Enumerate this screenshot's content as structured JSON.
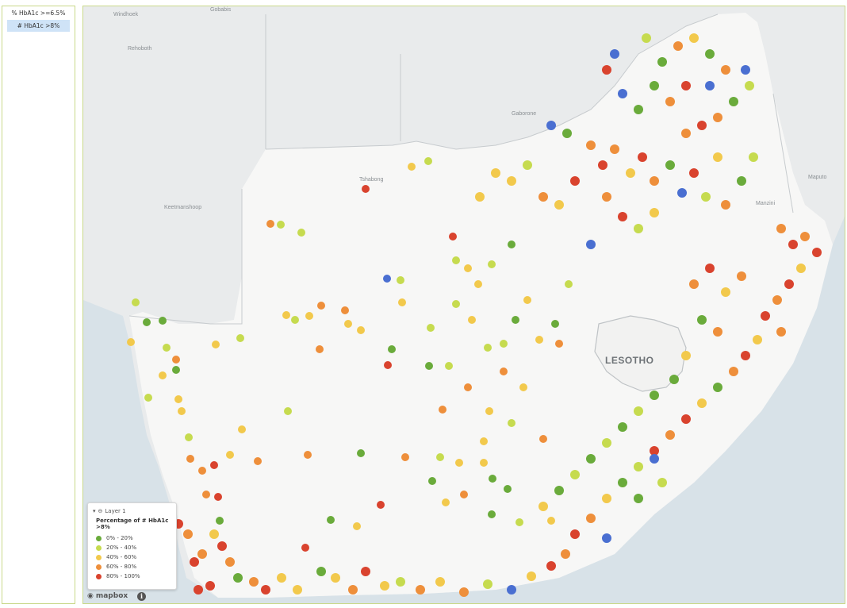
{
  "sidebar": {
    "metrics": [
      {
        "label": "% HbA1c >=6.5%",
        "active": false
      },
      {
        "label": "# HbA1c >8%",
        "active": true
      }
    ]
  },
  "map": {
    "place_labels": [
      "Windhoek",
      "Gobabis",
      "Rehoboth",
      "Gaborone",
      "Tshabong",
      "Keetmanshoop",
      "Manzini",
      "Maputo",
      "LESOTHO"
    ],
    "attribution": "mapbox",
    "info_symbol": "i"
  },
  "legend": {
    "layer_name": "Layer 1",
    "title": "Percentage of # HbA1c >8%",
    "items": [
      {
        "label": "0% - 20%",
        "color": "#6aab3b"
      },
      {
        "label": "20% - 40%",
        "color": "#c6db4f"
      },
      {
        "label": "40% - 60%",
        "color": "#f2c94c"
      },
      {
        "label": "60% - 80%",
        "color": "#ee8f3b"
      },
      {
        "label": "80% - 100%",
        "color": "#d9432e"
      }
    ]
  },
  "colors": {
    "zero_or_no_data": "#4a6fd1",
    "water": "#d8e2e8",
    "land": "#f7f7f6",
    "foreign_land": "#e9ebec"
  }
}
